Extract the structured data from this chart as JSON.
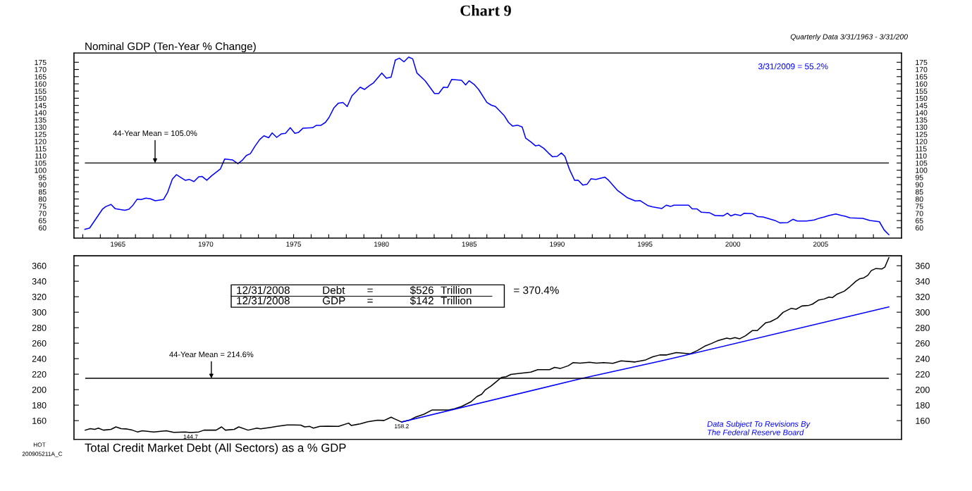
{
  "chart_data": [
    {
      "type": "line",
      "title": "Chart 9",
      "subtitle": "Nominal GDP (Ten-Year % Change)",
      "x": [
        1963.12,
        1963.39,
        1964.12,
        1964.32,
        1964.61,
        1964.85,
        1965.39,
        1965.63,
        1965.83,
        1966.1,
        1966.32,
        1966.59,
        1966.86,
        1967.12,
        1967.59,
        1967.83,
        1968.1,
        1968.33,
        1968.83,
        1969.06,
        1969.33,
        1969.6,
        1969.8,
        1970.06,
        1970.33,
        1970.83,
        1971.08,
        1971.53,
        1971.83,
        1972.07,
        1972.31,
        1972.54,
        1972.8,
        1973.07,
        1973.31,
        1973.58,
        1973.78,
        1974.04,
        1974.31,
        1974.54,
        1974.81,
        1975.07,
        1975.27,
        1975.54,
        1976.08,
        1976.28,
        1976.54,
        1976.81,
        1977.01,
        1977.3,
        1977.55,
        1977.81,
        1978.05,
        1978.32,
        1978.55,
        1978.79,
        1979.04,
        1979.31,
        1979.55,
        1980.02,
        1980.28,
        1980.55,
        1980.79,
        1981.02,
        1981.28,
        1981.55,
        1981.78,
        1982.02,
        1982.49,
        1983.02,
        1983.26,
        1983.53,
        1983.76,
        1984.0,
        1984.56,
        1984.79,
        1984.99,
        1985.3,
        1985.53,
        1986.0,
        1986.25,
        1986.49,
        1987.0,
        1987.23,
        1987.47,
        1987.74,
        1988.01,
        1988.21,
        1988.5,
        1988.77,
        1988.97,
        1989.23,
        1989.5,
        1989.73,
        1990.0,
        1990.24,
        1990.44,
        1990.7,
        1990.99,
        1991.19,
        1991.46,
        1991.71,
        1991.93,
        1992.2,
        1992.71,
        1992.93,
        1993.44,
        1993.98,
        1994.45,
        1994.71,
        1995.18,
        1995.45,
        1995.96,
        1996.21,
        1996.45,
        1996.65,
        1997.48,
        1997.69,
        1997.96,
        1998.21,
        1998.68,
        1998.99,
        1999.45,
        1999.69,
        1999.89,
        2000.12,
        2000.45,
        2000.65,
        2001.12,
        2001.41,
        2001.72,
        2002.39,
        2002.68,
        2003.12,
        2003.42,
        2003.66,
        2004.19,
        2004.63,
        2004.93,
        2005.2,
        2005.46,
        2005.86,
        2006.2,
        2006.4,
        2006.67,
        2007.4,
        2007.8,
        2008.34,
        2008.61,
        2008.88
      ],
      "series": [
        {
          "color": "#0000ff",
          "values": [
            58.9,
            59.8,
            72.9,
            74.8,
            76.2,
            73.2,
            72.2,
            72.9,
            75.3,
            79.9,
            79.6,
            80.6,
            80.1,
            78.8,
            79.6,
            84.6,
            93.8,
            96.9,
            93.0,
            93.6,
            92.1,
            95.4,
            95.6,
            93.0,
            96.1,
            100.8,
            107.8,
            107.1,
            104.5,
            106.8,
            110.2,
            111.5,
            116.6,
            121.3,
            123.9,
            122.6,
            125.9,
            122.8,
            125.3,
            125.6,
            129.5,
            125.6,
            126.2,
            129.2,
            129.5,
            131.1,
            131.1,
            133.2,
            136.5,
            143.4,
            146.6,
            147.0,
            144.2,
            151.7,
            154.5,
            157.7,
            156.1,
            158.7,
            160.7,
            167.5,
            163.9,
            164.7,
            176.5,
            177.8,
            175.3,
            178.6,
            177.3,
            167.5,
            162.1,
            153.3,
            153.3,
            157.7,
            157.4,
            163.1,
            162.4,
            159.3,
            162.1,
            159.3,
            156.1,
            147.1,
            145.2,
            144.2,
            137.7,
            133.2,
            130.6,
            131.3,
            130.0,
            122.2,
            119.7,
            116.9,
            117.4,
            115.3,
            112.0,
            109.4,
            109.6,
            112.0,
            109.6,
            100.6,
            93.0,
            93.1,
            89.7,
            90.3,
            94.1,
            93.6,
            95.2,
            93.0,
            85.9,
            81.0,
            78.6,
            78.9,
            75.3,
            74.5,
            73.4,
            75.7,
            74.8,
            75.7,
            75.7,
            73.1,
            73.1,
            70.8,
            70.4,
            68.5,
            68.3,
            70.1,
            68.2,
            69.3,
            68.5,
            70.1,
            69.8,
            67.7,
            67.5,
            65.1,
            63.4,
            63.6,
            65.9,
            64.7,
            64.7,
            65.4,
            66.7,
            67.5,
            68.5,
            69.6,
            68.5,
            68.0,
            66.9,
            66.5,
            65.1,
            64.2,
            58.5,
            55.2
          ]
        }
      ],
      "xlim": [
        1962.5,
        2009.6
      ],
      "ylim": [
        52.8,
        181.4
      ],
      "y2lim": [
        52.8,
        181.4
      ],
      "xticks": [
        {
          "value": 1963,
          "label": null
        },
        {
          "value": 1964,
          "label": null
        },
        1965,
        {
          "value": 1966,
          "label": null
        },
        {
          "value": 1967,
          "label": null
        },
        {
          "value": 1968,
          "label": null
        },
        {
          "value": 1969,
          "label": null
        },
        1970,
        {
          "value": 1971,
          "label": null
        },
        {
          "value": 1972,
          "label": null
        },
        {
          "value": 1973,
          "label": null
        },
        {
          "value": 1974,
          "label": null
        },
        1975,
        {
          "value": 1976,
          "label": null
        },
        {
          "value": 1977,
          "label": null
        },
        {
          "value": 1978,
          "label": null
        },
        {
          "value": 1979,
          "label": null
        },
        1980,
        {
          "value": 1981,
          "label": null
        },
        {
          "value": 1982,
          "label": null
        },
        {
          "value": 1983,
          "label": null
        },
        {
          "value": 1984,
          "label": null
        },
        1985,
        {
          "value": 1986,
          "label": null
        },
        {
          "value": 1987,
          "label": null
        },
        {
          "value": 1988,
          "label": null
        },
        {
          "value": 1989,
          "label": null
        },
        1990,
        {
          "value": 1991,
          "label": null
        },
        {
          "value": 1992,
          "label": null
        },
        {
          "value": 1993,
          "label": null
        },
        {
          "value": 1994,
          "label": null
        },
        1995,
        {
          "value": 1996,
          "label": null
        },
        {
          "value": 1997,
          "label": null
        },
        {
          "value": 1998,
          "label": null
        },
        {
          "value": 1999,
          "label": null
        },
        2000,
        {
          "value": 2001,
          "label": null
        },
        {
          "value": 2002,
          "label": null
        },
        {
          "value": 2003,
          "label": null
        },
        {
          "value": 2004,
          "label": null
        },
        2005,
        {
          "value": 2006,
          "label": null
        },
        {
          "value": 2007,
          "label": null
        },
        {
          "value": 2008,
          "label": null
        }
      ],
      "yticks": [
        60,
        65,
        70,
        75,
        80,
        85,
        90,
        95,
        100,
        105,
        110,
        115,
        120,
        125,
        130,
        135,
        140,
        145,
        150,
        155,
        160,
        165,
        170,
        175
      ],
      "y2ticks": [
        60,
        65,
        70,
        75,
        80,
        85,
        90,
        95,
        100,
        105,
        110,
        115,
        120,
        125,
        130,
        135,
        140,
        145,
        150,
        155,
        160,
        165,
        170,
        175
      ],
      "ref_lines": [
        {
          "axis": "y",
          "value": 105.0,
          "label": "44-Year Mean = 105.0%",
          "color": "#000000"
        }
      ],
      "annotations": [
        "Quarterly Data 3/31/1963 - 3/31/200",
        "3/31/2009 = 55.2%"
      ]
    },
    {
      "type": "line",
      "title": "Total Credit Market Debt (All Sectors) as a % GDP",
      "tick_labels": "y",
      "series": [
        {
          "color": "#000000",
          "x": [
            1963.14,
            1963.43,
            1963.68,
            1963.89,
            1964.18,
            1964.61,
            1964.89,
            1965.18,
            1965.46,
            1965.82,
            1966.11,
            1966.39,
            1967.04,
            1967.75,
            1968.18,
            1968.83,
            1969.14,
            1969.61,
            1969.9,
            1970.59,
            1970.9,
            1971.12,
            1971.62,
            1971.88,
            1972.41,
            1972.91,
            1973.12,
            1973.7,
            1974.05,
            1974.63,
            1974.98,
            1975.41,
            1975.63,
            1975.92,
            1976.13,
            1976.49,
            1976.92,
            1977.56,
            1978.13,
            1978.28,
            1978.78,
            1979.21,
            1979.78,
            1980.15,
            1980.55,
            1980.75,
            1981.15,
            1981.62,
            1981.95,
            1982.42,
            1982.89,
            1983.83,
            1984.16,
            1984.56,
            1985.1,
            1985.43,
            1985.7,
            1985.9,
            1986.23,
            1986.56,
            1986.83,
            1987.1,
            1987.37,
            1987.7,
            1988.5,
            1988.9,
            1989.57,
            1989.86,
            1990.17,
            1990.64,
            1990.9,
            1991.31,
            1991.84,
            1992.24,
            1992.64,
            1993.17,
            1993.64,
            1994.44,
            1995.04,
            1995.44,
            1995.84,
            1996.24,
            1996.78,
            1997.58,
            1997.98,
            1998.39,
            1998.78,
            1999.12,
            1999.65,
            1999.85,
            2000.12,
            2000.39,
            2000.72,
            2001.12,
            2001.39,
            2001.86,
            2002.13,
            2002.53,
            2002.86,
            2003.33,
            2003.6,
            2003.93,
            2004.33,
            2004.53,
            2004.87,
            2005.2,
            2005.47,
            2005.67,
            2005.94,
            2006.34,
            2006.67,
            2007.01,
            2007.21,
            2007.45,
            2007.68,
            2007.88,
            2008.14,
            2008.48,
            2008.65,
            2008.88
          ],
          "values": [
            147.7,
            149.6,
            148.7,
            150.3,
            147.7,
            148.7,
            151.9,
            149.6,
            149.3,
            147.7,
            145.4,
            147.0,
            145.4,
            147.0,
            144.8,
            145.4,
            144.7,
            145.4,
            147.7,
            147.7,
            151.9,
            147.7,
            148.7,
            151.9,
            147.7,
            150.3,
            149.3,
            151.3,
            152.5,
            154.5,
            154.5,
            154.2,
            151.9,
            152.5,
            150.3,
            152.5,
            152.9,
            152.5,
            156.8,
            153.8,
            155.8,
            158.4,
            160.6,
            160.2,
            164.4,
            162.3,
            158.2,
            160.8,
            164.7,
            168.3,
            173.8,
            173.8,
            175.3,
            178.3,
            184.4,
            191.0,
            194.0,
            199.5,
            204.6,
            210.7,
            215.8,
            216.7,
            219.7,
            220.6,
            222.7,
            225.8,
            225.8,
            228.8,
            227.3,
            230.9,
            234.8,
            234.2,
            235.4,
            234.2,
            234.8,
            233.9,
            237.2,
            235.7,
            238.4,
            242.4,
            244.8,
            244.8,
            247.8,
            246.3,
            250.5,
            256.0,
            259.6,
            263.0,
            266.6,
            265.7,
            267.2,
            265.7,
            269.6,
            276.3,
            276.3,
            286.2,
            287.7,
            292.3,
            299.8,
            305.0,
            303.8,
            308.0,
            308.9,
            310.4,
            315.6,
            317.1,
            319.5,
            318.9,
            323.4,
            327.1,
            333.1,
            340.1,
            343.1,
            344.3,
            347.6,
            353.7,
            356.4,
            355.8,
            358.2,
            370.4
          ]
        },
        {
          "color": "#0000ff",
          "x": [
            1981.15,
            1991.44,
            1995.98,
            2008.88
          ],
          "values": [
            158.2,
            214.6,
            237.3,
            306.8
          ]
        }
      ],
      "xlim": [
        1962.5,
        2009.6
      ],
      "ylim": [
        135.7,
        372.8
      ],
      "y2lim": [
        135.7,
        372.8
      ],
      "yticks": [
        160,
        180,
        200,
        220,
        240,
        260,
        280,
        300,
        320,
        340,
        360
      ],
      "y2ticks": [
        160,
        180,
        200,
        220,
        240,
        260,
        280,
        300,
        320,
        340,
        360
      ],
      "ref_lines": [
        {
          "axis": "y",
          "value": 214.6,
          "label": "44-Year Mean = 214.6%",
          "color": "#000000"
        }
      ],
      "annotations": [
        {
          "text": "144.7",
          "x": 1969.14,
          "y": 144.7
        },
        {
          "text": "158.2",
          "x": 1981.15,
          "y": 158.2
        },
        "12/31/2008",
        "Debt",
        "=",
        "$526",
        "Trillion",
        "12/31/2008",
        "GDP",
        "=",
        "$142",
        "Trillion",
        "= 370.4%",
        "Data Subject To Revisions By\nThe Federal Reserve Board",
        "HOT",
        "200905211A_C"
      ]
    }
  ]
}
